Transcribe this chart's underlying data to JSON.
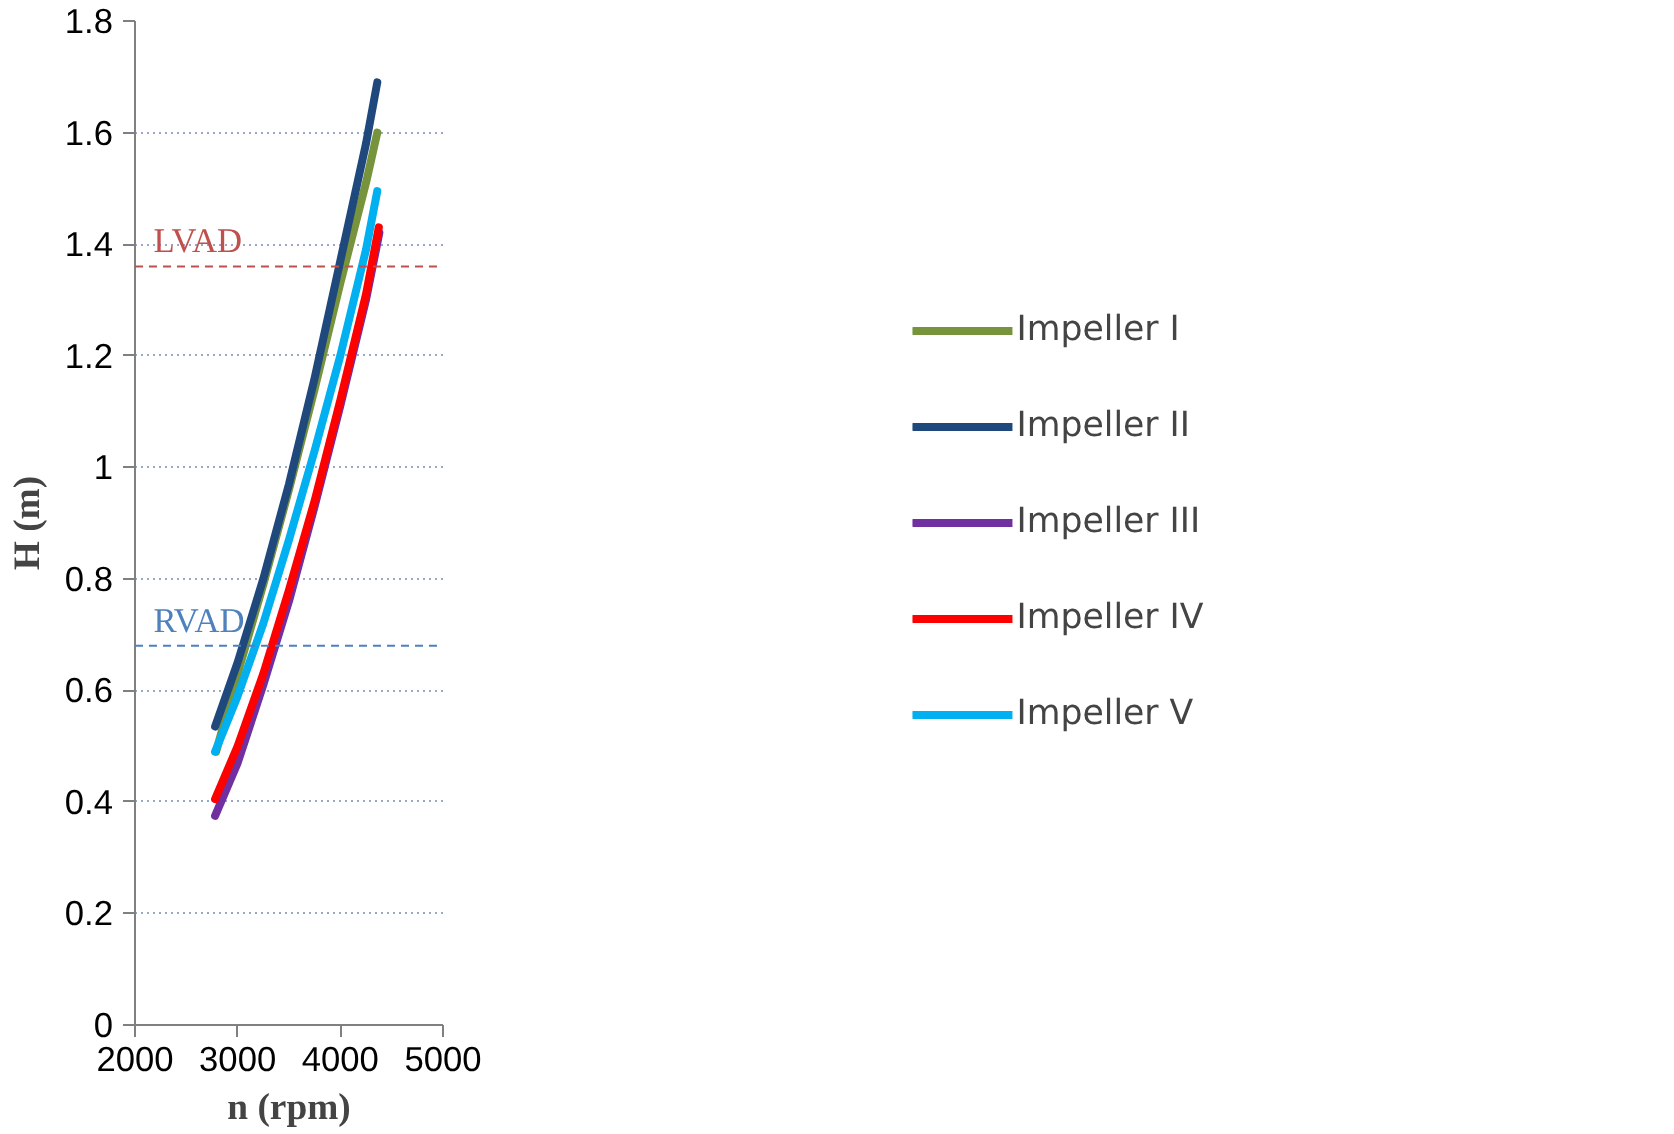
{
  "chart_data": {
    "type": "line",
    "xlabel": "n (rpm)",
    "ylabel": "H (m)",
    "xlim": [
      2000,
      5000
    ],
    "xticks": [
      2000,
      3000,
      4000,
      5000
    ],
    "ylim": [
      0,
      1.8
    ],
    "yticks": [
      0,
      0.2,
      0.4,
      0.6,
      0.8,
      1,
      1.2,
      1.4,
      1.6,
      1.8
    ],
    "grid": "y",
    "legend": "right",
    "line_style": "solid",
    "marker": "none",
    "series": [
      {
        "name": "Impeller I",
        "color": "#77933c",
        "x": [
          2790,
          3000,
          3250,
          3500,
          3750,
          4000,
          4250,
          4360
        ],
        "values": [
          0.49,
          0.63,
          0.79,
          0.96,
          1.14,
          1.33,
          1.51,
          1.6
        ]
      },
      {
        "name": "Impeller II",
        "color": "#1f497d",
        "x": [
          2780,
          3000,
          3250,
          3500,
          3750,
          4000,
          4250,
          4360
        ],
        "values": [
          0.535,
          0.65,
          0.8,
          0.97,
          1.16,
          1.37,
          1.58,
          1.69
        ]
      },
      {
        "name": "Impeller III",
        "color": "#7030a0",
        "x": [
          2780,
          3000,
          3250,
          3500,
          3750,
          4000,
          4250,
          4380
        ],
        "values": [
          0.375,
          0.47,
          0.61,
          0.76,
          0.93,
          1.11,
          1.3,
          1.42
        ]
      },
      {
        "name": "Impeller IV",
        "color": "#ff0000",
        "x": [
          2780,
          3000,
          3250,
          3500,
          3750,
          4000,
          4250,
          4375
        ],
        "values": [
          0.405,
          0.5,
          0.63,
          0.78,
          0.94,
          1.12,
          1.31,
          1.43
        ]
      },
      {
        "name": "Impeller V",
        "color": "#00b0f0",
        "x": [
          2780,
          3000,
          3250,
          3500,
          3750,
          4000,
          4250,
          4360
        ],
        "values": [
          0.49,
          0.59,
          0.72,
          0.87,
          1.03,
          1.2,
          1.39,
          1.495
        ]
      }
    ],
    "ref_lines": [
      {
        "axis": "y",
        "value": 1.36,
        "label": "LVAD",
        "color": "#c0504d",
        "line_style": "dashed"
      },
      {
        "axis": "y",
        "value": 0.68,
        "label": "RVAD",
        "color": "#4f81bd",
        "line_style": "dashed"
      }
    ]
  }
}
